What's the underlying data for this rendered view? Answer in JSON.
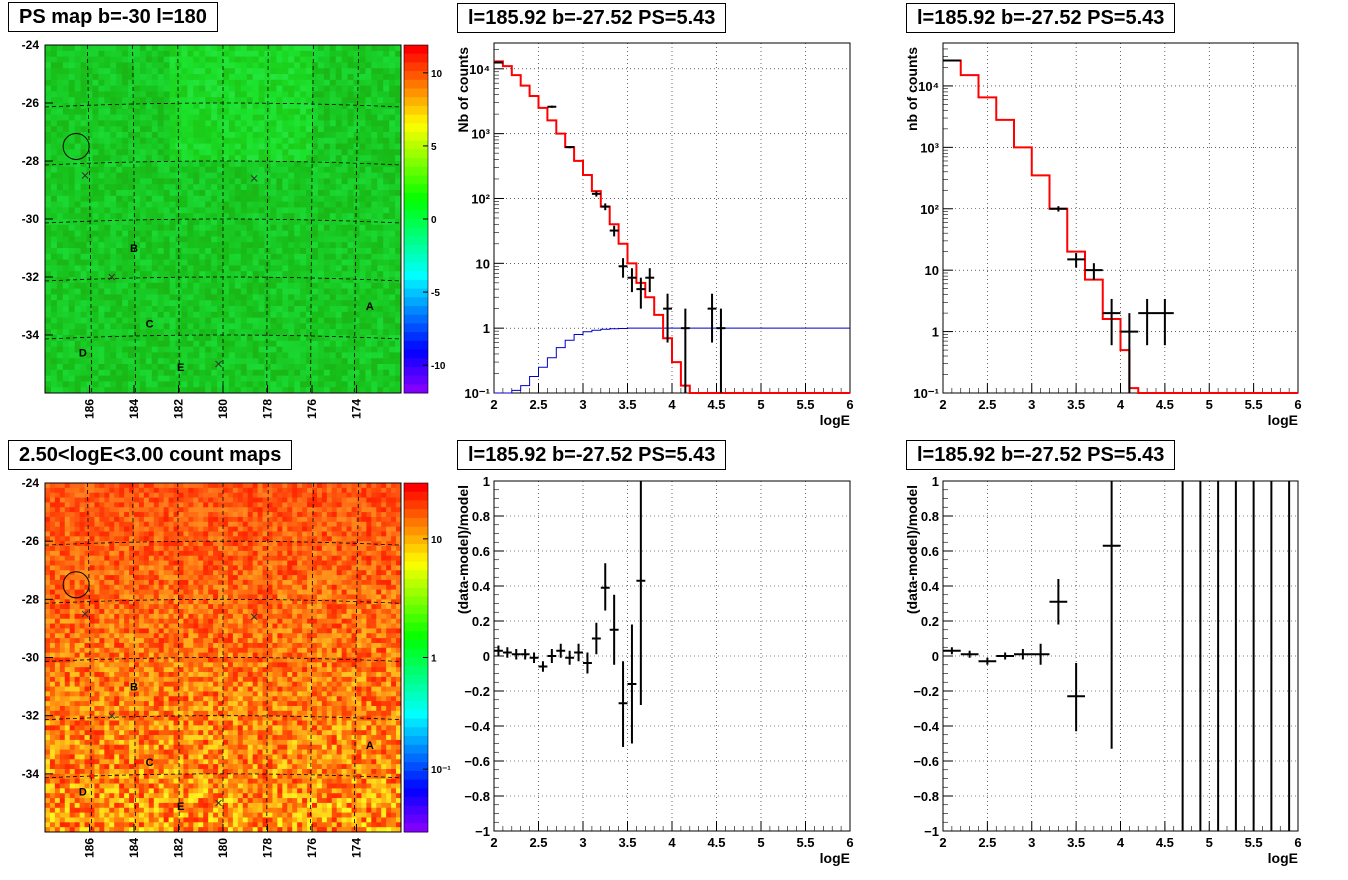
{
  "panels": {
    "ps_map": {
      "title": "PS map b=-30 l=180"
    },
    "count_map": {
      "title": "2.50<logE<3.00 count maps"
    },
    "spec_left": {
      "title": "l=185.92 b=-27.52 PS=5.43"
    },
    "spec_right": {
      "title": "l=185.92 b=-27.52 PS=5.43"
    },
    "resid_left": {
      "title": "l=185.92 b=-27.52 PS=5.43"
    },
    "resid_right": {
      "title": "l=185.92 b=-27.52 PS=5.43"
    }
  },
  "colors": {
    "model_line": "#ff0000",
    "background_line": "#0000cc",
    "data": "#000000",
    "grid": "#000000"
  },
  "chart_data": [
    {
      "id": "ps_map",
      "type": "heatmap",
      "title": "PS map b=-30 l=180",
      "x_ticks": [
        "186",
        "184",
        "182",
        "180",
        "178",
        "176",
        "174"
      ],
      "y_ticks": [
        "-24",
        "-26",
        "-28",
        "-30",
        "-32",
        "-34"
      ],
      "colorbar_ticks": [
        "10",
        "5",
        "0",
        "-5",
        "-10"
      ],
      "markers": [
        {
          "label": "A",
          "l": 173.4,
          "b": -33.0
        },
        {
          "label": "B",
          "l": 184.0,
          "b": -31.0
        },
        {
          "label": "C",
          "l": 183.3,
          "b": -33.6
        },
        {
          "label": "D",
          "l": 186.3,
          "b": -34.6
        },
        {
          "label": "E",
          "l": 181.9,
          "b": -35.1
        }
      ],
      "crosses": [
        {
          "l": 186.2,
          "b": -28.5
        },
        {
          "l": 178.6,
          "b": -28.6
        },
        {
          "l": 185.0,
          "b": -32.0
        },
        {
          "l": 180.2,
          "b": -35.0
        }
      ],
      "circle": {
        "l": 186.6,
        "b": -27.5
      }
    },
    {
      "id": "count_map",
      "type": "heatmap",
      "title": "2.50<logE<3.00 count maps",
      "x_ticks": [
        "186",
        "184",
        "182",
        "180",
        "178",
        "176",
        "174"
      ],
      "y_ticks": [
        "-24",
        "-26",
        "-28",
        "-30",
        "-32",
        "-34"
      ],
      "colorbar_ticks": [
        "10",
        "1",
        "10⁻¹"
      ],
      "markers": [
        {
          "label": "A",
          "l": 173.4,
          "b": -33.0
        },
        {
          "label": "B",
          "l": 184.0,
          "b": -31.0
        },
        {
          "label": "C",
          "l": 183.3,
          "b": -33.6
        },
        {
          "label": "D",
          "l": 186.3,
          "b": -34.6
        },
        {
          "label": "E",
          "l": 181.9,
          "b": -35.1
        }
      ],
      "crosses": [
        {
          "l": 186.2,
          "b": -28.5
        },
        {
          "l": 178.6,
          "b": -28.6
        },
        {
          "l": 185.0,
          "b": -32.0
        },
        {
          "l": 180.2,
          "b": -35.0
        }
      ],
      "circle": {
        "l": 186.6,
        "b": -27.5
      }
    },
    {
      "id": "spec_left",
      "type": "line",
      "title": "l=185.92 b=-27.52 PS=5.43",
      "xlabel": "logE",
      "ylabel": "Nb of counts",
      "log_y": true,
      "xlim": [
        2,
        6
      ],
      "ylim": [
        0.1,
        25000
      ],
      "x_ticks": [
        "2",
        "2.5",
        "3",
        "3.5",
        "4",
        "4.5",
        "5",
        "5.5",
        "6"
      ],
      "y_ticks": [
        "10⁻¹",
        "1",
        "10",
        "10²",
        "10³",
        "10⁴"
      ],
      "model": {
        "edges": [
          2.0,
          2.1,
          2.2,
          2.3,
          2.4,
          2.5,
          2.6,
          2.7,
          2.8,
          2.9,
          3.0,
          3.1,
          3.2,
          3.3,
          3.4,
          3.5,
          3.6,
          3.7,
          3.8,
          3.9,
          4.0,
          4.1,
          4.2,
          4.3,
          4.4,
          4.5,
          4.6,
          4.7,
          4.8,
          4.9,
          5.0,
          5.1,
          5.2,
          5.3,
          5.4,
          5.5,
          5.6,
          5.7,
          5.8,
          5.9,
          6.0
        ],
        "values": [
          13000,
          11000,
          8000,
          5500,
          3800,
          2500,
          1600,
          1000,
          620,
          380,
          230,
          130,
          75,
          40,
          20,
          10,
          5,
          3,
          1.6,
          0.7,
          0.3,
          0.13,
          0.1,
          0.1,
          0.1,
          0.1,
          0.1,
          0.1,
          0.1,
          0.1,
          0.1,
          0.1,
          0.1,
          0.1,
          0.1,
          0.1,
          0.1,
          0.1,
          0.1,
          0.1
        ]
      },
      "background": {
        "edges": [
          2.0,
          2.1,
          2.2,
          2.3,
          2.4,
          2.5,
          2.6,
          2.7,
          2.8,
          2.9,
          3.0,
          3.1,
          3.2,
          3.3,
          3.4,
          3.5,
          3.6,
          3.7,
          3.8,
          3.9,
          4.0,
          4.1,
          4.2,
          4.3,
          4.4,
          4.5,
          4.6,
          4.7,
          4.8,
          4.9,
          5.0,
          5.1,
          5.2,
          5.3,
          5.4,
          5.5,
          5.6,
          5.7,
          5.8,
          5.9,
          6.0
        ],
        "values": [
          0.1,
          0.1,
          0.11,
          0.13,
          0.18,
          0.25,
          0.35,
          0.5,
          0.65,
          0.8,
          0.88,
          0.93,
          0.96,
          0.98,
          0.99,
          1,
          1,
          1,
          1,
          1,
          1,
          1,
          1,
          1,
          1,
          1,
          1,
          1,
          1,
          1,
          1,
          1,
          1,
          1,
          1,
          1,
          1,
          1,
          1,
          1
        ]
      },
      "data_points": [
        {
          "x": 2.05,
          "y": 12500,
          "xerr": 0.05,
          "lo": 12300,
          "hi": 12700
        },
        {
          "x": 2.65,
          "y": 2600,
          "xerr": 0.05,
          "lo": 2500,
          "hi": 2700
        },
        {
          "x": 2.85,
          "y": 620,
          "xerr": 0.05,
          "lo": 595,
          "hi": 645
        },
        {
          "x": 3.15,
          "y": 118,
          "xerr": 0.05,
          "lo": 107,
          "hi": 129
        },
        {
          "x": 3.25,
          "y": 75,
          "xerr": 0.05,
          "lo": 66,
          "hi": 84
        },
        {
          "x": 3.35,
          "y": 32,
          "xerr": 0.05,
          "lo": 26,
          "hi": 38
        },
        {
          "x": 3.45,
          "y": 9,
          "xerr": 0.05,
          "lo": 6,
          "hi": 12
        },
        {
          "x": 3.55,
          "y": 6,
          "xerr": 0.05,
          "lo": 3.6,
          "hi": 8.4
        },
        {
          "x": 3.65,
          "y": 4,
          "xerr": 0.05,
          "lo": 2,
          "hi": 6
        },
        {
          "x": 3.75,
          "y": 6,
          "xerr": 0.05,
          "lo": 3.6,
          "hi": 8.4
        },
        {
          "x": 3.95,
          "y": 2,
          "xerr": 0.05,
          "lo": 0.6,
          "hi": 3.4
        },
        {
          "x": 4.15,
          "y": 1,
          "xerr": 0.05,
          "lo": 0.1,
          "hi": 2
        },
        {
          "x": 4.45,
          "y": 2,
          "xerr": 0.05,
          "lo": 0.6,
          "hi": 3.4
        },
        {
          "x": 4.55,
          "y": 1,
          "xerr": 0.05,
          "lo": 0.1,
          "hi": 2
        }
      ]
    },
    {
      "id": "spec_right",
      "type": "line",
      "title": "l=185.92 b=-27.52 PS=5.43",
      "xlabel": "logE",
      "ylabel": "nb of counts",
      "log_y": true,
      "xlim": [
        2,
        6
      ],
      "ylim": [
        0.1,
        50000
      ],
      "x_ticks": [
        "2",
        "2.5",
        "3",
        "3.5",
        "4",
        "4.5",
        "5",
        "5.5",
        "6"
      ],
      "y_ticks": [
        "10⁻¹",
        "1",
        "10",
        "10²",
        "10³",
        "10⁴"
      ],
      "model": {
        "edges": [
          2.0,
          2.2,
          2.4,
          2.6,
          2.8,
          3.0,
          3.2,
          3.4,
          3.6,
          3.8,
          4.0,
          4.1,
          4.2,
          4.4,
          4.6,
          4.8,
          5.0,
          5.2,
          5.4,
          5.6,
          5.8,
          6.0
        ],
        "values": [
          26000,
          15000,
          6500,
          2800,
          1000,
          350,
          100,
          20,
          7,
          1.6,
          0.5,
          0.12,
          0.1,
          0.1,
          0.1,
          0.1,
          0.1,
          0.1,
          0.1,
          0.1,
          0.1
        ]
      },
      "data_points": [
        {
          "x": 2.1,
          "y": 26000,
          "xerr": 0.1,
          "lo": 25800,
          "hi": 26200
        },
        {
          "x": 3.3,
          "y": 100,
          "xerr": 0.1,
          "lo": 90,
          "hi": 110
        },
        {
          "x": 3.5,
          "y": 15,
          "xerr": 0.1,
          "lo": 11,
          "hi": 19
        },
        {
          "x": 3.7,
          "y": 10,
          "xerr": 0.1,
          "lo": 7,
          "hi": 13
        },
        {
          "x": 3.9,
          "y": 2,
          "xerr": 0.1,
          "lo": 0.6,
          "hi": 3.4
        },
        {
          "x": 4.1,
          "y": 1,
          "xerr": 0.1,
          "lo": 0.1,
          "hi": 2
        },
        {
          "x": 4.3,
          "y": 2,
          "xerr": 0.1,
          "lo": 0.6,
          "hi": 3.4
        },
        {
          "x": 4.5,
          "y": 2,
          "xerr": 0.1,
          "lo": 0.6,
          "hi": 3.4
        }
      ]
    },
    {
      "id": "resid_left",
      "type": "scatter",
      "title": "l=185.92 b=-27.52 PS=5.43",
      "xlabel": "logE",
      "ylabel": "(data-model)/model",
      "xlim": [
        2,
        6
      ],
      "ylim": [
        -1,
        1
      ],
      "x_ticks": [
        "2",
        "2.5",
        "3",
        "3.5",
        "4",
        "4.5",
        "5",
        "5.5",
        "6"
      ],
      "y_ticks": [
        "−1",
        "−0.8",
        "−0.6",
        "−0.4",
        "−0.2",
        "0",
        "0.2",
        "0.4",
        "0.6",
        "0.8",
        "1"
      ],
      "data_points": [
        {
          "x": 2.05,
          "y": 0.03,
          "xerr": 0.05,
          "lo": 0.0,
          "hi": 0.06
        },
        {
          "x": 2.15,
          "y": 0.02,
          "xerr": 0.05,
          "lo": -0.01,
          "hi": 0.05
        },
        {
          "x": 2.25,
          "y": 0.01,
          "xerr": 0.05,
          "lo": -0.02,
          "hi": 0.04
        },
        {
          "x": 2.35,
          "y": 0.01,
          "xerr": 0.05,
          "lo": -0.02,
          "hi": 0.04
        },
        {
          "x": 2.45,
          "y": -0.01,
          "xerr": 0.05,
          "lo": -0.04,
          "hi": 0.02
        },
        {
          "x": 2.55,
          "y": -0.06,
          "xerr": 0.05,
          "lo": -0.09,
          "hi": -0.03
        },
        {
          "x": 2.65,
          "y": 0.0,
          "xerr": 0.05,
          "lo": -0.04,
          "hi": 0.04
        },
        {
          "x": 2.75,
          "y": 0.03,
          "xerr": 0.05,
          "lo": -0.01,
          "hi": 0.07
        },
        {
          "x": 2.85,
          "y": -0.01,
          "xerr": 0.05,
          "lo": -0.05,
          "hi": 0.03
        },
        {
          "x": 2.95,
          "y": 0.02,
          "xerr": 0.05,
          "lo": -0.03,
          "hi": 0.07
        },
        {
          "x": 3.05,
          "y": -0.04,
          "xerr": 0.05,
          "lo": -0.1,
          "hi": 0.02
        },
        {
          "x": 3.15,
          "y": 0.1,
          "xerr": 0.05,
          "lo": 0.01,
          "hi": 0.19
        },
        {
          "x": 3.25,
          "y": 0.39,
          "xerr": 0.05,
          "lo": 0.26,
          "hi": 0.53
        },
        {
          "x": 3.35,
          "y": 0.15,
          "xerr": 0.05,
          "lo": -0.05,
          "hi": 0.35
        },
        {
          "x": 3.45,
          "y": -0.27,
          "xerr": 0.05,
          "lo": -0.52,
          "hi": -0.03
        },
        {
          "x": 3.55,
          "y": -0.16,
          "xerr": 0.05,
          "lo": -0.5,
          "hi": 0.18
        },
        {
          "x": 3.65,
          "y": 0.43,
          "xerr": 0.05,
          "lo": -0.28,
          "hi": 1.0
        }
      ]
    },
    {
      "id": "resid_right",
      "type": "scatter",
      "title": "l=185.92 b=-27.52 PS=5.43",
      "xlabel": "logE",
      "ylabel": "(data-model)/model",
      "xlim": [
        2,
        6
      ],
      "ylim": [
        -1,
        1
      ],
      "x_ticks": [
        "2",
        "2.5",
        "3",
        "3.5",
        "4",
        "4.5",
        "5",
        "5.5",
        "6"
      ],
      "y_ticks": [
        "−1",
        "−0.8",
        "−0.6",
        "−0.4",
        "−0.2",
        "0",
        "0.2",
        "0.4",
        "0.6",
        "0.8",
        "1"
      ],
      "data_points": [
        {
          "x": 2.1,
          "y": 0.03,
          "xerr": 0.1,
          "lo": 0.01,
          "hi": 0.05
        },
        {
          "x": 2.3,
          "y": 0.01,
          "xerr": 0.1,
          "lo": -0.01,
          "hi": 0.03
        },
        {
          "x": 2.5,
          "y": -0.03,
          "xerr": 0.1,
          "lo": -0.05,
          "hi": -0.01
        },
        {
          "x": 2.7,
          "y": 0.0,
          "xerr": 0.1,
          "lo": -0.02,
          "hi": 0.02
        },
        {
          "x": 2.9,
          "y": 0.01,
          "xerr": 0.1,
          "lo": -0.02,
          "hi": 0.04
        },
        {
          "x": 3.1,
          "y": 0.01,
          "xerr": 0.1,
          "lo": -0.05,
          "hi": 0.07
        },
        {
          "x": 3.3,
          "y": 0.31,
          "xerr": 0.1,
          "lo": 0.18,
          "hi": 0.44
        },
        {
          "x": 3.5,
          "y": -0.23,
          "xerr": 0.1,
          "lo": -0.43,
          "hi": -0.04
        },
        {
          "x": 3.9,
          "y": 0.63,
          "xerr": 0.1,
          "lo": -0.53,
          "hi": 1.0
        },
        {
          "x": 4.7,
          "y": 1.0,
          "xerr": 0,
          "lo": -1.0,
          "hi": 1.0
        },
        {
          "x": 4.9,
          "y": 1.0,
          "xerr": 0,
          "lo": -1.0,
          "hi": 1.0
        },
        {
          "x": 5.1,
          "y": 1.0,
          "xerr": 0,
          "lo": -1.0,
          "hi": 1.0
        },
        {
          "x": 5.3,
          "y": 1.0,
          "xerr": 0,
          "lo": -1.0,
          "hi": 1.0
        },
        {
          "x": 5.5,
          "y": 1.0,
          "xerr": 0,
          "lo": -1.0,
          "hi": 1.0
        },
        {
          "x": 5.7,
          "y": 1.0,
          "xerr": 0,
          "lo": -1.0,
          "hi": 1.0
        },
        {
          "x": 5.9,
          "y": 1.0,
          "xerr": 0,
          "lo": -1.0,
          "hi": 1.0
        }
      ]
    }
  ]
}
